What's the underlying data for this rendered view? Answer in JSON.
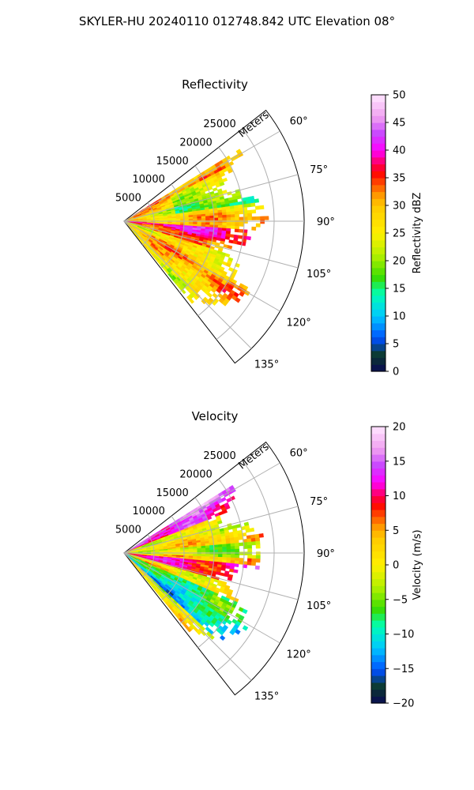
{
  "figure": {
    "title": "SKYLER-HU  20240110  012748.842 UTC Elevation 08°"
  },
  "chart_data": [
    {
      "type": "heatmap",
      "projection": "polar-sector",
      "title": "Reflectivity",
      "radial_label": "Meters",
      "radial_ticks": [
        5000,
        10000,
        15000,
        20000,
        25000
      ],
      "radial_tick_labels": [
        "5000",
        "10000",
        "15000",
        "20000",
        "25000"
      ],
      "r_max": 30000,
      "azimuth_range": [
        52,
        142
      ],
      "azimuth_ticks": [
        60,
        75,
        90,
        105,
        120,
        135
      ],
      "azimuth_tick_labels": [
        "60°",
        "75°",
        "90°",
        "105°",
        "120°",
        "135°"
      ],
      "grid": true,
      "colorbar": {
        "label": "Reflectivity dBZ",
        "min": 0,
        "max": 50,
        "ticks": [
          0,
          5,
          10,
          15,
          20,
          25,
          30,
          35,
          40,
          45,
          50
        ],
        "tick_labels": [
          "0",
          "5",
          "10",
          "15",
          "20",
          "25",
          "30",
          "35",
          "40",
          "45",
          "50"
        ],
        "stops": [
          [
            0,
            "#0a0a55"
          ],
          [
            0.06,
            "#0c3a2c"
          ],
          [
            0.12,
            "#0050ff"
          ],
          [
            0.2,
            "#00c8ff"
          ],
          [
            0.28,
            "#00ffb4"
          ],
          [
            0.34,
            "#38dc00"
          ],
          [
            0.42,
            "#b4f000"
          ],
          [
            0.5,
            "#fff000"
          ],
          [
            0.6,
            "#ffc800"
          ],
          [
            0.64,
            "#ff9600"
          ],
          [
            0.72,
            "#ff0000"
          ],
          [
            0.76,
            "#ff0078"
          ],
          [
            0.8,
            "#ff00ff"
          ],
          [
            0.86,
            "#c846ff"
          ],
          [
            0.92,
            "#f0a0f0"
          ],
          [
            1,
            "#ffe6ff"
          ]
        ]
      },
      "field_description": "echo fills sector ~58°-140°, out to ~24 km; mostly 25-35 dBZ with bands of 35-45 near 100°",
      "data_extent": {
        "az_min": 58,
        "az_max": 140,
        "r_max": 24000
      }
    },
    {
      "type": "heatmap",
      "projection": "polar-sector",
      "title": "Velocity",
      "radial_label": "Meters",
      "radial_ticks": [
        5000,
        10000,
        15000,
        20000,
        25000
      ],
      "radial_tick_labels": [
        "5000",
        "10000",
        "15000",
        "20000",
        "25000"
      ],
      "r_max": 30000,
      "azimuth_range": [
        52,
        142
      ],
      "azimuth_ticks": [
        60,
        75,
        90,
        105,
        120,
        135
      ],
      "azimuth_tick_labels": [
        "60°",
        "75°",
        "90°",
        "105°",
        "120°",
        "135°"
      ],
      "grid": true,
      "colorbar": {
        "label": "Velocity (m/s)",
        "min": -20,
        "max": 20,
        "ticks": [
          -20,
          -15,
          -10,
          -5,
          0,
          5,
          10,
          15,
          20
        ],
        "tick_labels": [
          "−20",
          "−15",
          "−10",
          "−5",
          "0",
          "5",
          "10",
          "15",
          "20"
        ],
        "stops": [
          [
            0,
            "#0a0a55"
          ],
          [
            0.06,
            "#0c3a2c"
          ],
          [
            0.12,
            "#0050ff"
          ],
          [
            0.2,
            "#00c8ff"
          ],
          [
            0.28,
            "#00ffb4"
          ],
          [
            0.34,
            "#38dc00"
          ],
          [
            0.42,
            "#b4f000"
          ],
          [
            0.5,
            "#fff000"
          ],
          [
            0.6,
            "#ffc800"
          ],
          [
            0.64,
            "#ff9600"
          ],
          [
            0.72,
            "#ff0000"
          ],
          [
            0.76,
            "#ff0078"
          ],
          [
            0.8,
            "#ff00ff"
          ],
          [
            0.86,
            "#c846ff"
          ],
          [
            0.92,
            "#f0a0f0"
          ],
          [
            1,
            "#ffe6ff"
          ]
        ]
      },
      "field_description": "velocity ranges about -15 to +18 m/s; positive (magenta/red) near 60° and 100°, negative (cyan/green) near 115°-130°",
      "data_extent": {
        "az_min": 58,
        "az_max": 140,
        "r_max": 24000
      }
    }
  ]
}
